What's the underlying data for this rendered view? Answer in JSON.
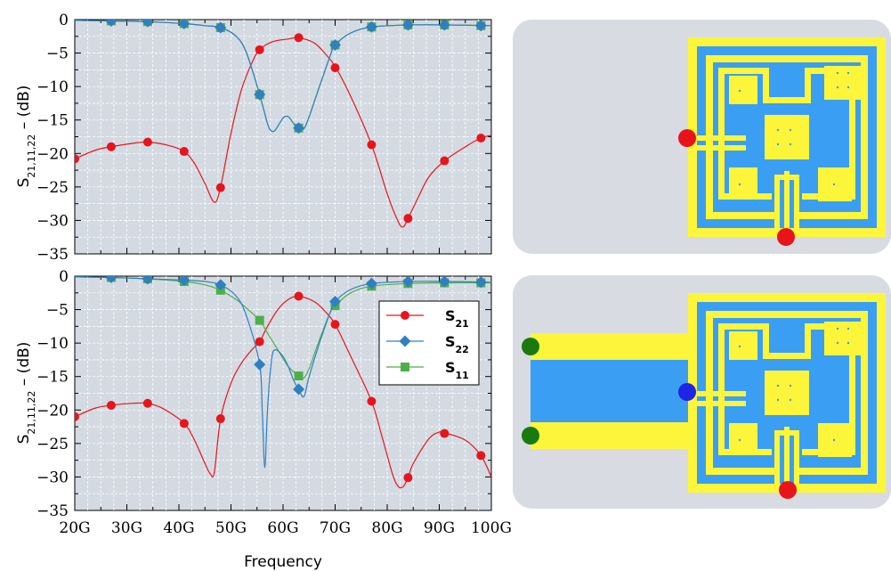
{
  "chart_data": [
    {
      "type": "line",
      "ylabel": {
        "main": "S",
        "sub": "21,11,22",
        "suffix": " – (dB)"
      },
      "xlabel": "",
      "xlim": [
        20,
        100
      ],
      "ylim": [
        -35,
        0
      ],
      "yticks": [
        0,
        -5,
        -10,
        -15,
        -20,
        -25,
        -30,
        -35
      ],
      "ytick_labels": [
        "0",
        "−5",
        "−10",
        "−15",
        "−20",
        "−25",
        "−30",
        "−35"
      ],
      "grid": true,
      "legend": null,
      "series": [
        {
          "id": "s21",
          "color": "#e8141c",
          "marker": "circle",
          "curve": [
            [
              20,
              -20.8
            ],
            [
              24,
              -19.5
            ],
            [
              27,
              -19.0
            ],
            [
              31,
              -18.5
            ],
            [
              34,
              -18.3
            ],
            [
              38,
              -18.8
            ],
            [
              41,
              -19.7
            ],
            [
              43,
              -21.5
            ],
            [
              45,
              -24.5
            ],
            [
              46.8,
              -27.3
            ],
            [
              48,
              -25.0
            ],
            [
              50,
              -17.0
            ],
            [
              52,
              -10.5
            ],
            [
              54,
              -6.5
            ],
            [
              55.5,
              -4.5
            ],
            [
              58,
              -3.3
            ],
            [
              61,
              -2.9
            ],
            [
              63,
              -2.7
            ],
            [
              66,
              -3.5
            ],
            [
              68,
              -5.0
            ],
            [
              70,
              -7.0
            ],
            [
              73,
              -11.5
            ],
            [
              77,
              -18.7
            ],
            [
              80,
              -26.0
            ],
            [
              82,
              -30.0
            ],
            [
              83,
              -31.0
            ],
            [
              84,
              -29.7
            ],
            [
              86,
              -26.5
            ],
            [
              88,
              -23.5
            ],
            [
              91,
              -21.1
            ],
            [
              95,
              -19.0
            ],
            [
              98,
              -17.7
            ],
            [
              100,
              -17.3
            ]
          ],
          "markers": [
            [
              20,
              -20.8
            ],
            [
              27,
              -19.0
            ],
            [
              34,
              -18.3
            ],
            [
              41,
              -19.7
            ],
            [
              48,
              -25.1
            ],
            [
              55.5,
              -4.5
            ],
            [
              63,
              -2.7
            ],
            [
              70,
              -7.2
            ],
            [
              77,
              -18.7
            ],
            [
              84,
              -29.7
            ],
            [
              91,
              -21.1
            ],
            [
              98,
              -17.7
            ]
          ]
        },
        {
          "id": "s22",
          "color": "#2f7fc1",
          "marker": "diamond",
          "curve": [
            [
              20,
              -0.1
            ],
            [
              27,
              -0.2
            ],
            [
              34,
              -0.3
            ],
            [
              41,
              -0.6
            ],
            [
              45,
              -0.9
            ],
            [
              48,
              -1.2
            ],
            [
              51,
              -2.5
            ],
            [
              53,
              -5.0
            ],
            [
              55.5,
              -11.2
            ],
            [
              57,
              -15.5
            ],
            [
              57.7,
              -16.6
            ],
            [
              58.5,
              -16.5
            ],
            [
              60,
              -14.7
            ],
            [
              61,
              -14.5
            ],
            [
              62,
              -15.5
            ],
            [
              63,
              -16.2
            ],
            [
              64,
              -16.3
            ],
            [
              65,
              -14.5
            ],
            [
              67,
              -10.0
            ],
            [
              69,
              -5.5
            ],
            [
              70,
              -3.8
            ],
            [
              73,
              -2.0
            ],
            [
              77,
              -1.1
            ],
            [
              84,
              -0.8
            ],
            [
              91,
              -0.8
            ],
            [
              100,
              -0.9
            ]
          ],
          "markers": [
            [
              27,
              -0.2
            ],
            [
              34,
              -0.3
            ],
            [
              41,
              -0.6
            ],
            [
              48,
              -1.2
            ],
            [
              55.5,
              -11.2
            ],
            [
              63,
              -16.2
            ],
            [
              70,
              -3.8
            ],
            [
              77,
              -1.1
            ],
            [
              84,
              -0.8
            ],
            [
              91,
              -0.8
            ],
            [
              98,
              -0.9
            ]
          ]
        },
        {
          "id": "s11",
          "color": "#4daf4a",
          "marker": "square",
          "curve": [
            [
              20,
              -0.1
            ],
            [
              27,
              -0.2
            ],
            [
              34,
              -0.3
            ],
            [
              41,
              -0.6
            ],
            [
              45,
              -0.9
            ],
            [
              48,
              -1.2
            ],
            [
              51,
              -2.5
            ],
            [
              53,
              -5.0
            ],
            [
              55.5,
              -11.2
            ],
            [
              57,
              -15.5
            ],
            [
              57.7,
              -16.6
            ],
            [
              58.5,
              -16.5
            ],
            [
              60,
              -14.7
            ],
            [
              61,
              -14.5
            ],
            [
              62,
              -15.5
            ],
            [
              63,
              -16.2
            ],
            [
              64,
              -16.3
            ],
            [
              65,
              -14.5
            ],
            [
              67,
              -10.0
            ],
            [
              69,
              -5.5
            ],
            [
              70,
              -3.8
            ],
            [
              73,
              -2.0
            ],
            [
              77,
              -1.1
            ],
            [
              84,
              -0.8
            ],
            [
              91,
              -0.8
            ],
            [
              100,
              -0.9
            ]
          ],
          "markers": [
            [
              27,
              -0.2
            ],
            [
              34,
              -0.3
            ],
            [
              41,
              -0.6
            ],
            [
              48,
              -1.2
            ],
            [
              55.5,
              -11.2
            ],
            [
              63,
              -16.2
            ],
            [
              70,
              -3.8
            ],
            [
              77,
              -1.1
            ],
            [
              84,
              -0.8
            ],
            [
              91,
              -0.8
            ],
            [
              98,
              -0.9
            ]
          ]
        }
      ]
    },
    {
      "type": "line",
      "ylabel": {
        "main": "S",
        "sub": "21,11,22",
        "suffix": " – (dB)"
      },
      "xlabel": "Frequency",
      "xlim": [
        20,
        100
      ],
      "ylim": [
        -35,
        0
      ],
      "xticks": [
        20,
        30,
        40,
        50,
        60,
        70,
        80,
        90,
        100
      ],
      "xtick_labels": [
        "20G",
        "30G",
        "40G",
        "50G",
        "60G",
        "70G",
        "80G",
        "90G",
        "100G"
      ],
      "yticks": [
        0,
        -5,
        -10,
        -15,
        -20,
        -25,
        -30,
        -35
      ],
      "ytick_labels": [
        "0",
        "−5",
        "−10",
        "−15",
        "−20",
        "−25",
        "−30",
        "−35"
      ],
      "grid": true,
      "legend": "top-right",
      "series": [
        {
          "id": "s21",
          "name": "S",
          "sub": "21",
          "color": "#e8141c",
          "marker": "circle",
          "curve": [
            [
              20,
              -21.0
            ],
            [
              24,
              -19.7
            ],
            [
              27,
              -19.3
            ],
            [
              31,
              -19.0
            ],
            [
              34,
              -19.0
            ],
            [
              37,
              -19.8
            ],
            [
              41,
              -22.0
            ],
            [
              43,
              -24.5
            ],
            [
              45,
              -28.0
            ],
            [
              46,
              -29.5
            ],
            [
              46.8,
              -29.3
            ],
            [
              48,
              -21.3
            ],
            [
              50,
              -16.0
            ],
            [
              52,
              -13.0
            ],
            [
              54,
              -11.0
            ],
            [
              55.5,
              -9.8
            ],
            [
              57,
              -7.5
            ],
            [
              59,
              -5.0
            ],
            [
              61,
              -3.5
            ],
            [
              63,
              -3.0
            ],
            [
              66,
              -3.8
            ],
            [
              68,
              -5.2
            ],
            [
              70,
              -7.2
            ],
            [
              73,
              -12.0
            ],
            [
              77,
              -18.7
            ],
            [
              79,
              -24.0
            ],
            [
              81,
              -29.5
            ],
            [
              82,
              -31.3
            ],
            [
              83,
              -31.5
            ],
            [
              84,
              -30.1
            ],
            [
              85,
              -28.0
            ],
            [
              88,
              -24.3
            ],
            [
              90,
              -23.3
            ],
            [
              91,
              -23.4
            ],
            [
              95,
              -24.5
            ],
            [
              98,
              -26.8
            ],
            [
              100,
              -30.0
            ]
          ],
          "markers": [
            [
              20,
              -21.0
            ],
            [
              27,
              -19.3
            ],
            [
              34,
              -19.0
            ],
            [
              41,
              -22.0
            ],
            [
              48,
              -21.3
            ],
            [
              55.5,
              -9.8
            ],
            [
              63,
              -3.0
            ],
            [
              70,
              -7.2
            ],
            [
              77,
              -18.7
            ],
            [
              84,
              -30.1
            ],
            [
              91,
              -23.5
            ],
            [
              98,
              -26.8
            ]
          ]
        },
        {
          "id": "s22",
          "name": "S",
          "sub": "22",
          "color": "#2f7fc1",
          "marker": "diamond",
          "curve": [
            [
              20,
              -0.1
            ],
            [
              27,
              -0.2
            ],
            [
              34,
              -0.4
            ],
            [
              41,
              -0.6
            ],
            [
              45,
              -0.8
            ],
            [
              48,
              -1.3
            ],
            [
              51,
              -3.0
            ],
            [
              53,
              -6.0
            ],
            [
              55.5,
              -13.2
            ],
            [
              56,
              -20.0
            ],
            [
              56.5,
              -28.6
            ],
            [
              57,
              -20.0
            ],
            [
              57.8,
              -12.5
            ],
            [
              58.5,
              -11.0
            ],
            [
              60,
              -12.0
            ],
            [
              61,
              -13.5
            ],
            [
              62,
              -15.5
            ],
            [
              63,
              -16.9
            ],
            [
              64,
              -18.0
            ],
            [
              65,
              -15.0
            ],
            [
              67,
              -10.0
            ],
            [
              69,
              -5.5
            ],
            [
              70,
              -3.8
            ],
            [
              73,
              -2.0
            ],
            [
              77,
              -1.1
            ],
            [
              84,
              -0.8
            ],
            [
              91,
              -0.8
            ],
            [
              100,
              -0.9
            ]
          ],
          "markers": [
            [
              27,
              -0.2
            ],
            [
              34,
              -0.4
            ],
            [
              41,
              -0.6
            ],
            [
              48,
              -1.3
            ],
            [
              55.5,
              -13.2
            ],
            [
              63,
              -16.9
            ],
            [
              70,
              -3.8
            ],
            [
              77,
              -1.1
            ],
            [
              84,
              -0.8
            ],
            [
              91,
              -0.8
            ],
            [
              98,
              -0.9
            ]
          ]
        },
        {
          "id": "s11",
          "name": "S",
          "sub": "11",
          "color": "#4daf4a",
          "marker": "square",
          "curve": [
            [
              20,
              -0.1
            ],
            [
              27,
              -0.2
            ],
            [
              34,
              -0.4
            ],
            [
              41,
              -0.8
            ],
            [
              45,
              -1.3
            ],
            [
              48,
              -2.1
            ],
            [
              51,
              -3.5
            ],
            [
              53,
              -4.8
            ],
            [
              55.5,
              -6.6
            ],
            [
              57,
              -8.5
            ],
            [
              59,
              -11.0
            ],
            [
              61,
              -13.5
            ],
            [
              63,
              -14.9
            ],
            [
              64,
              -15.2
            ],
            [
              65,
              -13.8
            ],
            [
              67,
              -9.5
            ],
            [
              69,
              -5.5
            ],
            [
              70,
              -4.4
            ],
            [
              73,
              -2.5
            ],
            [
              77,
              -1.5
            ],
            [
              84,
              -1.1
            ],
            [
              91,
              -1.0
            ],
            [
              100,
              -1.0
            ]
          ],
          "markers": [
            [
              27,
              -0.2
            ],
            [
              34,
              -0.4
            ],
            [
              41,
              -0.8
            ],
            [
              48,
              -2.1
            ],
            [
              55.5,
              -6.6
            ],
            [
              63,
              -14.9
            ],
            [
              70,
              -4.4
            ],
            [
              77,
              -1.5
            ],
            [
              84,
              -1.1
            ],
            [
              91,
              -1.0
            ],
            [
              98,
              -1.0
            ]
          ]
        }
      ]
    }
  ],
  "colors": {
    "plot_bg": "#d3dae2",
    "panel_bg": "#d8dce2",
    "pcb_yellow": "#fdf53a",
    "pcb_blue": "#3a9ff2",
    "port_red": "#e8141c",
    "port_blue": "#1f24e6",
    "port_green": "#1a7a10"
  }
}
